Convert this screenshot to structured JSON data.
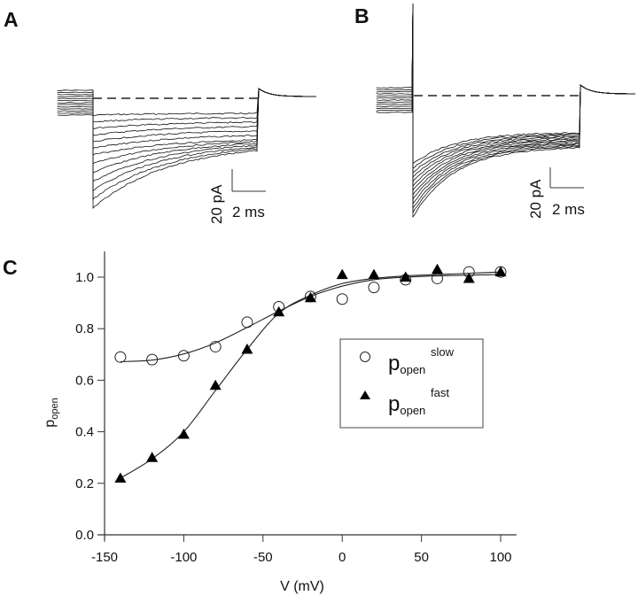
{
  "panels": {
    "a": {
      "letter": "A",
      "scale_bar": {
        "current_label": "20 pA",
        "time_label": "2 ms"
      },
      "trace_count": 13
    },
    "b": {
      "letter": "B",
      "scale_bar": {
        "current_label": "20 pA",
        "time_label": "2 ms"
      },
      "trace_count": 13
    },
    "c": {
      "letter": "C"
    }
  },
  "chart_data": {
    "type": "scatter",
    "title": "",
    "xlabel": "V (mV)",
    "ylabel_main": "p",
    "ylabel_sub": "open",
    "xlim": [
      -150,
      110
    ],
    "ylim": [
      0.0,
      1.1
    ],
    "xticks": [
      -150,
      -100,
      -50,
      0,
      50,
      100
    ],
    "xtick_labels": [
      "-150",
      "-100",
      "-50",
      "0",
      "50",
      "100"
    ],
    "yticks": [
      0.0,
      0.2,
      0.4,
      0.6,
      0.8,
      1.0
    ],
    "ytick_labels": [
      "0.0",
      "0.2",
      "0.4",
      "0.6",
      "0.8",
      "1.0"
    ],
    "grid": false,
    "legend_position": "center-right",
    "x": [
      -140,
      -120,
      -100,
      -80,
      -60,
      -40,
      -20,
      0,
      20,
      40,
      60,
      80,
      100
    ],
    "series": [
      {
        "name": "p_open slow",
        "legend_main": "p",
        "legend_sub": "open",
        "legend_sup": "slow",
        "marker": "open-circle",
        "values": [
          0.69,
          0.68,
          0.695,
          0.73,
          0.825,
          0.885,
          0.925,
          0.915,
          0.96,
          0.99,
          0.995,
          1.02,
          1.02
        ],
        "fit": [
          0.672,
          0.678,
          0.702,
          0.745,
          0.805,
          0.868,
          0.925,
          0.965,
          0.99,
          1.0,
          1.005,
          1.008,
          1.01
        ]
      },
      {
        "name": "p_open fast",
        "legend_main": "p",
        "legend_sub": "open",
        "legend_sup": "fast",
        "marker": "filled-triangle",
        "values": [
          0.22,
          0.3,
          0.39,
          0.58,
          0.72,
          0.865,
          0.92,
          1.01,
          1.01,
          1.0,
          1.03,
          0.995,
          1.02
        ],
        "fit": [
          0.22,
          0.295,
          0.4,
          0.56,
          0.72,
          0.86,
          0.93,
          0.975,
          0.995,
          1.005,
          1.01,
          1.015,
          1.02
        ]
      }
    ]
  }
}
